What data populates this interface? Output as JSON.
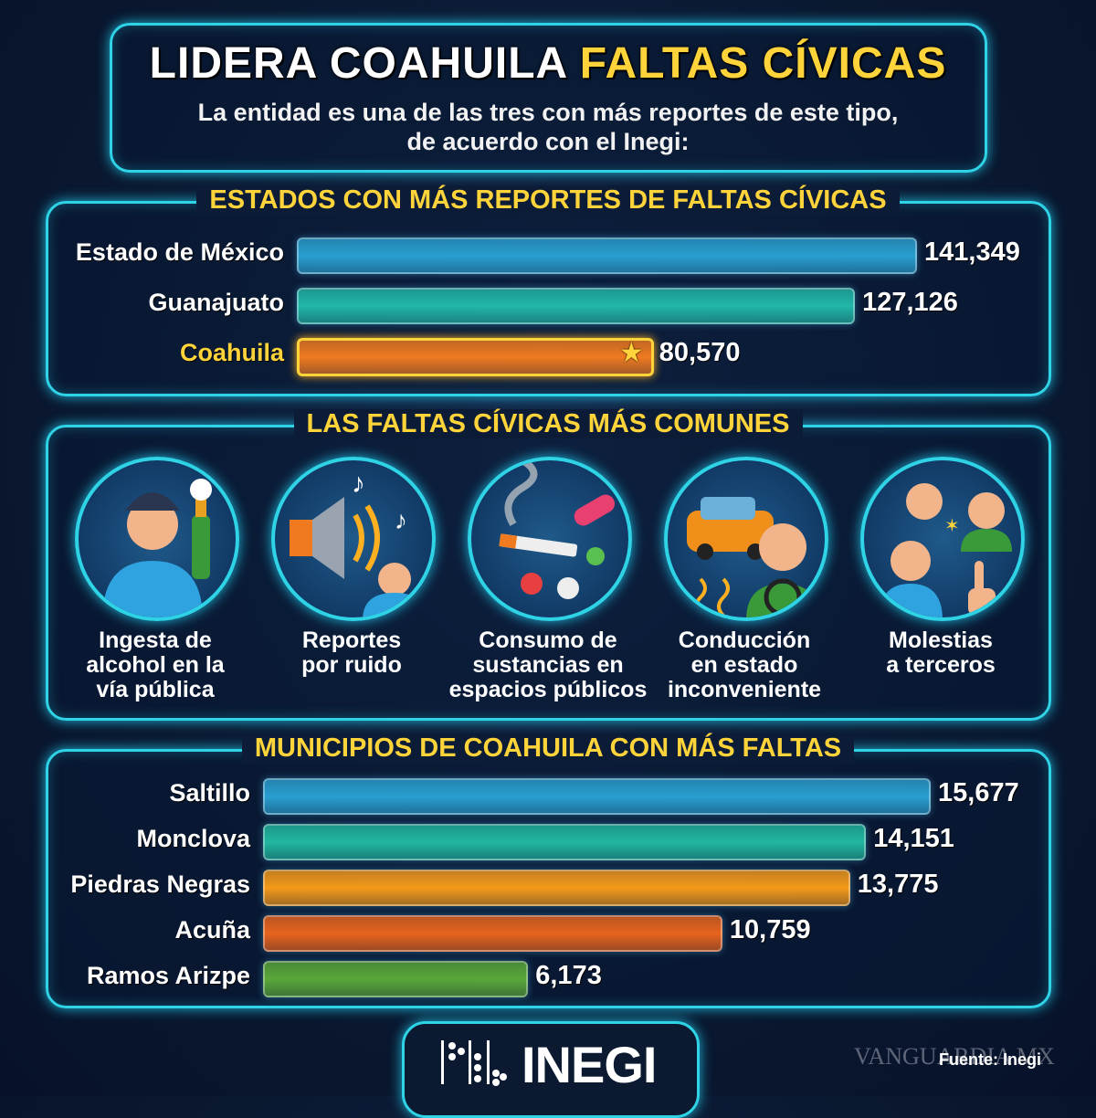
{
  "header": {
    "title_part1": "LIDERA COAHUILA",
    "title_part2": "FALTAS CÍVICAS",
    "subtitle_line1": "La entidad es una de las tres con más reportes de este tipo,",
    "subtitle_line2": "de acuerdo con el Inegi:"
  },
  "colors": {
    "accent": "#ffd43a",
    "neon": "#2fd3e6",
    "background": "#0a1830"
  },
  "chart_data": [
    {
      "type": "bar",
      "orientation": "horizontal",
      "title": "ESTADOS CON MÁS REPORTES DE FALTAS CÍVICAS",
      "categories": [
        "Estado de México",
        "Guanajuato",
        "Coahuila"
      ],
      "values": [
        141349,
        127126,
        80570
      ],
      "value_labels": [
        "141,349",
        "127,126",
        "80,570"
      ],
      "highlight": "Coahuila",
      "bar_colors": [
        "#2a9fd0",
        "#22b7a8",
        "#f07a20"
      ]
    },
    {
      "type": "bar",
      "orientation": "horizontal",
      "title": "MUNICIPIOS DE COAHUILA CON MÁS FALTAS",
      "categories": [
        "Saltillo",
        "Monclova",
        "Piedras Negras",
        "Acuña",
        "Ramos Arizpe"
      ],
      "values": [
        15677,
        14151,
        13775,
        10759,
        6173
      ],
      "value_labels": [
        "15,677",
        "14,151",
        "13,775",
        "10,759",
        "6,173"
      ],
      "bar_colors": [
        "#2a9fd0",
        "#22b7a0",
        "#f59a1a",
        "#e8641e",
        "#5aa83a"
      ]
    }
  ],
  "common": {
    "title": "LAS FALTAS CÍVICAS MÁS COMUNES",
    "items": [
      {
        "icon": "person-drinking-beer-icon",
        "line1": "Ingesta de",
        "line2": "alcohol en la",
        "line3": "vía pública"
      },
      {
        "icon": "loudspeaker-noise-icon",
        "line1": "Reportes",
        "line2": "por ruido",
        "line3": ""
      },
      {
        "icon": "cigarette-pills-icon",
        "line1": "Consumo de",
        "line2": "sustancias en",
        "line3": "espacios públicos"
      },
      {
        "icon": "impaired-driver-car-icon",
        "line1": "Conducción",
        "line2": "en estado",
        "line3": "inconveniente"
      },
      {
        "icon": "people-arguing-icon",
        "line1": "Molestias",
        "line2": "a terceros",
        "line3": ""
      }
    ]
  },
  "footer": {
    "logo": "INEGI",
    "source": "Fuente: Inegi",
    "watermark": "VANGUARDIA MX"
  }
}
